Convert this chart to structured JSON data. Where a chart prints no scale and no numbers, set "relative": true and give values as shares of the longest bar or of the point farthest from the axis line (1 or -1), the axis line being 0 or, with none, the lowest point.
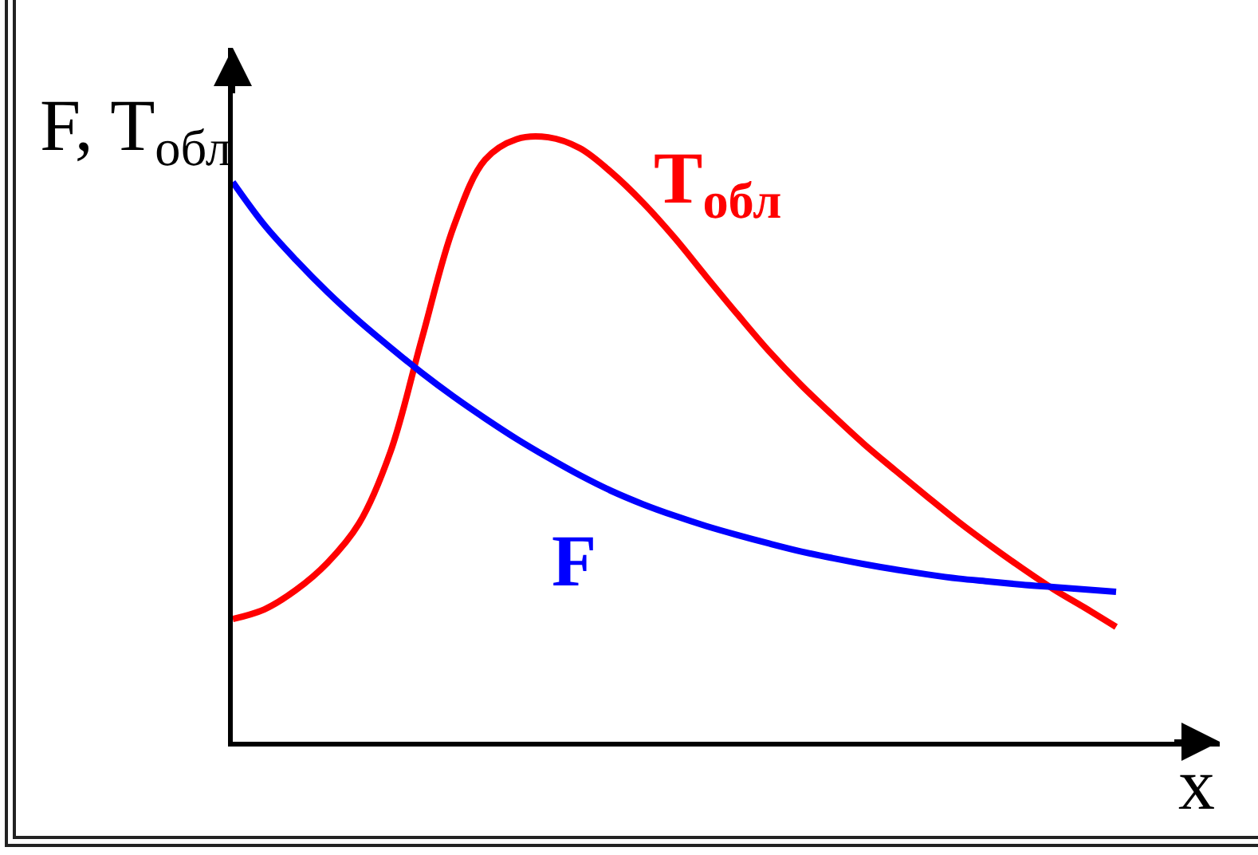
{
  "chart_data": {
    "type": "line",
    "relative": true,
    "ylabel": "F, T$_{обл}$",
    "xlabel": "x",
    "categories": [
      null,
      null,
      null,
      null,
      null,
      null,
      null,
      null,
      null,
      null,
      null,
      null,
      null,
      null,
      null,
      null,
      null,
      null,
      null,
      null,
      null,
      null,
      null,
      null,
      null,
      null,
      null,
      null,
      null
    ],
    "series": [
      {
        "name": "T$_{обл}$",
        "color": "#ff0000",
        "values": [
          0.203,
          0.219,
          0.251,
          0.296,
          0.361,
          0.48,
          0.668,
          0.852,
          0.963,
          0.997,
          1,
          0.982,
          0.942,
          0.892,
          0.834,
          0.77,
          0.707,
          0.646,
          0.591,
          0.541,
          0.493,
          0.449,
          0.406,
          0.364,
          0.325,
          0.288,
          0.253,
          0.222,
          0.19
        ]
      },
      {
        "name": "F",
        "color": "#0000ff",
        "values": [
          0.926,
          0.855,
          0.797,
          0.744,
          0.696,
          0.652,
          0.61,
          0.571,
          0.535,
          0.501,
          0.47,
          0.441,
          0.415,
          0.393,
          0.374,
          0.357,
          0.342,
          0.328,
          0.315,
          0.304,
          0.294,
          0.285,
          0.277,
          0.27,
          0.265,
          0.26,
          0.256,
          0.252,
          0.248
        ]
      }
    ]
  }
}
